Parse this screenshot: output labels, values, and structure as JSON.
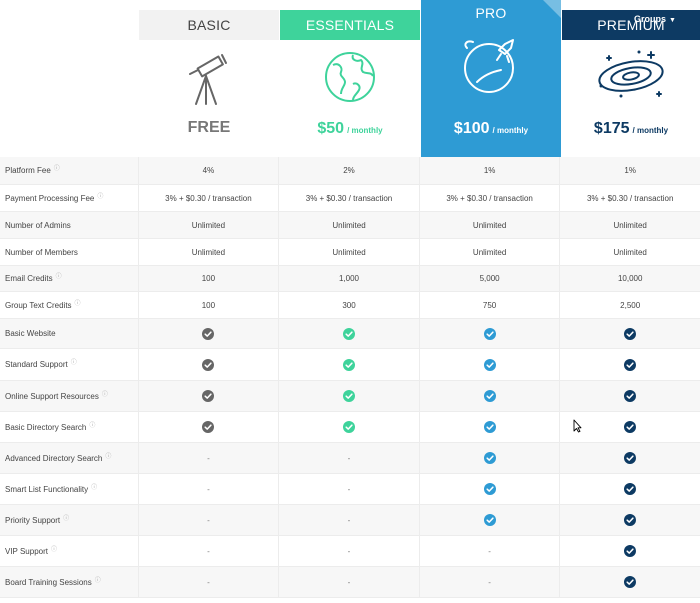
{
  "plans": [
    {
      "name": "BASIC",
      "price": "FREE",
      "period": ""
    },
    {
      "name": "ESSENTIALS",
      "price": "$50",
      "period": "/ monthly"
    },
    {
      "name": "PRO",
      "price": "$100",
      "period": "/ monthly"
    },
    {
      "name": "PREMIUM",
      "price": "$175",
      "period": "/ monthly"
    }
  ],
  "groups_menu": {
    "label": "Groups"
  },
  "colors": {
    "basic": "#666666",
    "essentials": "#3ed39b",
    "pro": "#2e9bd4",
    "premium": "#0d3a63"
  },
  "icons": {
    "basic": "telescope-icon",
    "essentials": "globe-icon",
    "pro": "planet-rocket-icon",
    "premium": "galaxy-icon",
    "included": "check-circle-icon"
  },
  "features": [
    {
      "label": "Platform Fee",
      "info": true,
      "values": [
        "4%",
        "2%",
        "1%",
        "1%"
      ]
    },
    {
      "label": "Payment Processing Fee",
      "info": true,
      "values": [
        "3% + $0.30 / transaction",
        "3% + $0.30 / transaction",
        "3% + $0.30 / transaction",
        "3% + $0.30 / transaction"
      ]
    },
    {
      "label": "Number of Admins",
      "info": false,
      "values": [
        "Unlimited",
        "Unlimited",
        "Unlimited",
        "Unlimited"
      ]
    },
    {
      "label": "Number of Members",
      "info": false,
      "values": [
        "Unlimited",
        "Unlimited",
        "Unlimited",
        "Unlimited"
      ]
    },
    {
      "label": "Email Credits",
      "info": true,
      "values": [
        "100",
        "1,000",
        "5,000",
        "10,000"
      ]
    },
    {
      "label": "Group Text Credits",
      "info": true,
      "values": [
        "100",
        "300",
        "750",
        "2,500"
      ]
    },
    {
      "label": "Basic Website",
      "info": false,
      "values": [
        "check",
        "check",
        "check",
        "check"
      ]
    },
    {
      "label": "Standard Support",
      "info": true,
      "values": [
        "check",
        "check",
        "check",
        "check"
      ]
    },
    {
      "label": "Online Support Resources",
      "info": true,
      "values": [
        "check",
        "check",
        "check",
        "check"
      ]
    },
    {
      "label": "Basic Directory Search",
      "info": true,
      "values": [
        "check",
        "check",
        "check",
        "check"
      ]
    },
    {
      "label": "Advanced Directory Search",
      "info": true,
      "values": [
        "-",
        "-",
        "check",
        "check"
      ]
    },
    {
      "label": "Smart List Functionality",
      "info": true,
      "values": [
        "-",
        "-",
        "check",
        "check"
      ]
    },
    {
      "label": "Priority Support",
      "info": true,
      "values": [
        "-",
        "-",
        "check",
        "check"
      ]
    },
    {
      "label": "VIP Support",
      "info": true,
      "values": [
        "-",
        "-",
        "-",
        "check"
      ]
    },
    {
      "label": "Board Training Sessions",
      "info": true,
      "values": [
        "-",
        "-",
        "-",
        "check"
      ]
    }
  ]
}
